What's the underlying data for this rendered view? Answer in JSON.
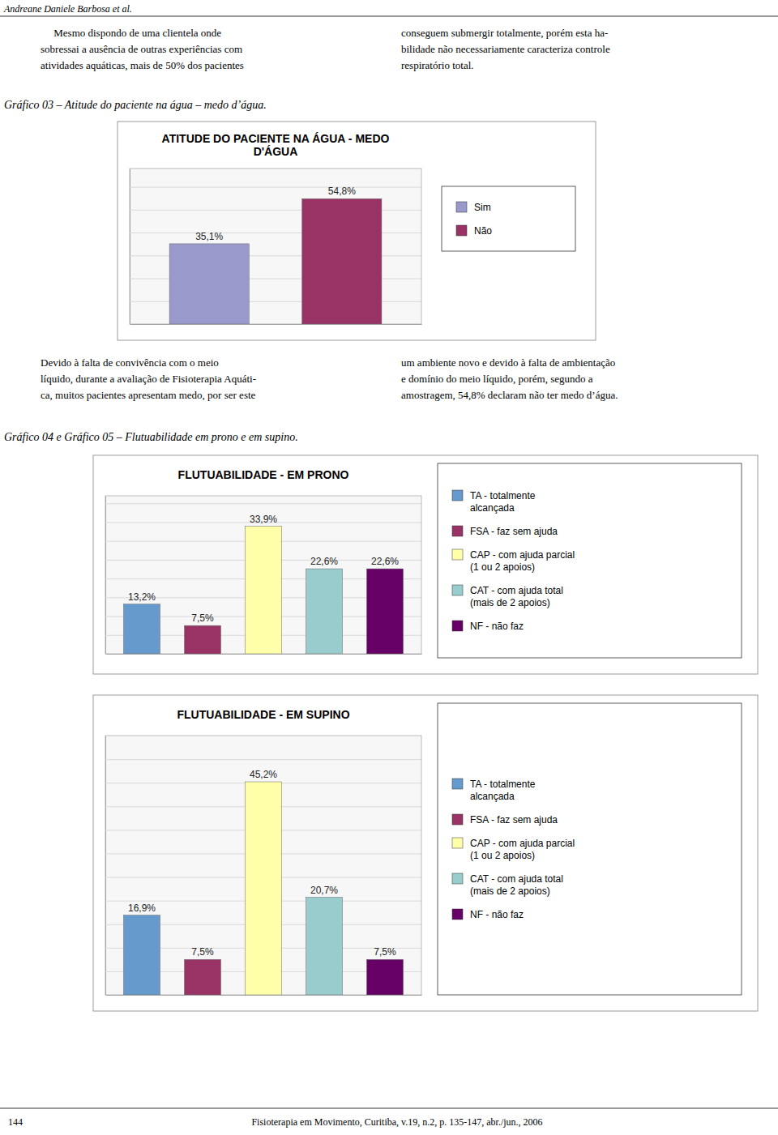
{
  "page": {
    "header": "Andreane Daniele Barbosa et al.",
    "paragraphs": [
      [
        "     Mesmo dispondo de uma clientela onde\nsobressai a ausência de outras experiências com\natividades aquáticas, mais de 50% dos pacientes",
        "conseguem submergir totalmente, porém esta ha-\nbilidade não necessariamente caracteriza controle\nrespiratório total."
      ],
      [
        "Devido à falta de convivência com o meio\nlíquido, durante a avaliação de Fisioterapia Aquáti-\nca, muitos pacientes apresentam medo, por ser este",
        "um ambiente novo e devido à falta de ambientação\ne domínio do meio líquido, porém, segundo a\namostragem, 54,8% declaram não ter medo d’água."
      ]
    ],
    "captions": [
      "Gráfico 03 – Atitude do paciente na água – medo d’água.",
      "Gráfico 04 e Gráfico 05 – Flutuabilidade em prono e em supino."
    ],
    "footer": [
      "144",
      "Fisioterapia em Movimento, Curitiba, v.19, n.2, p. 135-147, abr./jun., 2006"
    ]
  },
  "chart_data": [
    {
      "type": "bar",
      "title": "ATITUDE DO PACIENTE NA ÁGUA - MEDO\nD'ÁGUA",
      "categories": [
        "Sim",
        "Não"
      ],
      "values": [
        35.1,
        54.8
      ],
      "value_labels": [
        "35,1%",
        "54,8%"
      ],
      "colors": [
        "#9999cc",
        "#993366"
      ],
      "ylim": [
        0,
        68
      ],
      "yticks": [
        0,
        10,
        20,
        30,
        40,
        50,
        60
      ],
      "grid": true,
      "legend": "right",
      "data_labels": true,
      "tick_labels": false
    },
    {
      "type": "bar",
      "title": "FLUTUABILIDADE - EM PRONO",
      "categories": [
        "TA - totalmente\nalcançada",
        "FSA - faz sem ajuda",
        "CAP - com ajuda parcial\n(1 ou 2 apoios)",
        "CAT - com ajuda total\n(mais de 2 apoios)",
        "NF - não faz"
      ],
      "values": [
        13.2,
        7.5,
        33.9,
        22.6,
        22.6
      ],
      "value_labels": [
        "13,2%",
        "7,5%",
        "33,9%",
        "22,6%",
        "22,6%"
      ],
      "colors": [
        "#6699cc",
        "#993366",
        "#ffffaa",
        "#99cccc",
        "#660066"
      ],
      "ylim": [
        0,
        42
      ],
      "yticks": [
        0,
        5,
        10,
        15,
        20,
        25,
        30,
        35,
        40
      ],
      "grid": true,
      "legend": "right",
      "data_labels": true,
      "tick_labels": false
    },
    {
      "type": "bar",
      "title": "FLUTUABILIDADE - EM SUPINO",
      "categories": [
        "TA - totalmente\nalcançada",
        "FSA - faz sem ajuda",
        "CAP - com ajuda parcial\n(1 ou 2 apoios)",
        "CAT - com ajuda total\n(mais de 2 apoios)",
        "NF - não faz"
      ],
      "values": [
        16.9,
        7.5,
        45.2,
        20.7,
        7.5
      ],
      "value_labels": [
        "16,9%",
        "7,5%",
        "45,2%",
        "20,7%",
        "7,5%"
      ],
      "colors": [
        "#6699cc",
        "#993366",
        "#ffffaa",
        "#99cccc",
        "#660066"
      ],
      "ylim": [
        0,
        55
      ],
      "yticks": [
        0,
        5,
        10,
        15,
        20,
        25,
        30,
        35,
        40,
        45,
        50
      ],
      "grid": true,
      "legend": "right",
      "data_labels": true,
      "tick_labels": false
    }
  ]
}
